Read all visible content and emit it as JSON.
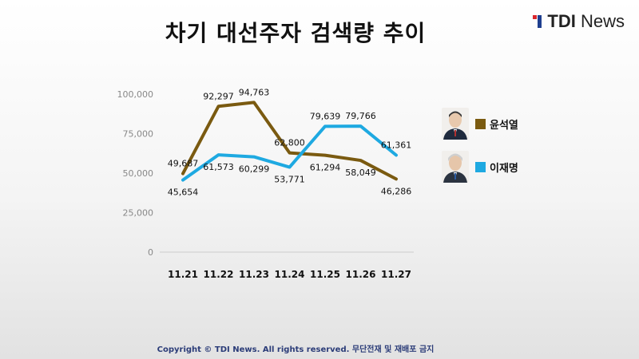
{
  "header": {
    "title": "차기 대선주자 검색량 추이"
  },
  "logo": {
    "bold_text": "TDI",
    "text": "News"
  },
  "footer": {
    "copyright": "Copyright © TDI News. All rights reserved. 무단전재 및 재배포 금지"
  },
  "colors": {
    "yoon": "#7a5a10",
    "lee": "#1ea9e1",
    "axis": "#cccccc",
    "logo_red": "#d9262d",
    "logo_blue": "#1f3f8f"
  },
  "chart_data": {
    "type": "line",
    "title": "차기 대선주자 검색량 추이",
    "categories": [
      "11.21",
      "11.22",
      "11.23",
      "11.24",
      "11.25",
      "11.26",
      "11.27"
    ],
    "y_ticks": [
      "0",
      "25,000",
      "50,000",
      "75,000",
      "100,000"
    ],
    "ylim": [
      0,
      100000
    ],
    "grid": false,
    "legend_position": "right",
    "series": [
      {
        "name": "윤석열",
        "color": "#7a5a10",
        "values": [
          49687,
          92297,
          94763,
          62800,
          61294,
          58049,
          46286
        ],
        "labels": [
          "49,687",
          "92,297",
          "94,763",
          "62,800",
          "61,294",
          "58,049",
          "46,286"
        ]
      },
      {
        "name": "이재명",
        "color": "#1ea9e1",
        "values": [
          45654,
          61573,
          60299,
          53771,
          79639,
          79766,
          61361
        ],
        "labels": [
          "45,654",
          "61,573",
          "60,299",
          "53,771",
          "79,639",
          "79,766",
          "61,361"
        ]
      }
    ]
  }
}
